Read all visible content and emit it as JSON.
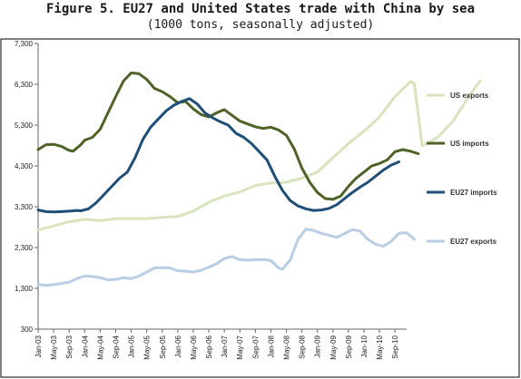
{
  "title": "Figure 5.  EU27 and United States trade with China by sea",
  "subtitle": "(1000 tons, seasonally adjusted)",
  "chart_data": {
    "type": "line",
    "title": "Figure 5.  EU27 and United States trade with China by sea",
    "subtitle": "(1000 tons, seasonally adjusted)",
    "xlabel": "",
    "ylabel": "",
    "ylim": [
      300,
      7300
    ],
    "yticks": [
      300,
      1300,
      2300,
      3300,
      4300,
      5300,
      6300,
      7300
    ],
    "ytick_labels": [
      "300",
      "1,300",
      "2,300",
      "3,300",
      "4,300",
      "5,300",
      "6,300",
      "7,300"
    ],
    "x_labels": [
      "Jan-03",
      "May-03",
      "Sep-03",
      "Jan-04",
      "May-04",
      "Sep-04",
      "Jan-05",
      "May-05",
      "Sep-05",
      "Jan-06",
      "May-06",
      "Sep-06",
      "Jan-07",
      "May-07",
      "Sep-07",
      "Jan-08",
      "May-08",
      "Sep-08",
      "Jan-09",
      "May-09",
      "Sep-09",
      "Jan-10",
      "May-10",
      "Sep-10"
    ],
    "grid": false,
    "legend": "right",
    "series": [
      {
        "name": "US exports",
        "color": "#d7e4bd",
        "points": [
          [
            0,
            2730
          ],
          [
            4,
            2830
          ],
          [
            8,
            2930
          ],
          [
            12,
            2990
          ],
          [
            16,
            2960
          ],
          [
            20,
            3010
          ],
          [
            24,
            3010
          ],
          [
            28,
            3010
          ],
          [
            32,
            3040
          ],
          [
            36,
            3060
          ],
          [
            40,
            3190
          ],
          [
            44,
            3410
          ],
          [
            48,
            3560
          ],
          [
            52,
            3660
          ],
          [
            56,
            3820
          ],
          [
            60,
            3880
          ],
          [
            64,
            3900
          ],
          [
            68,
            4000
          ],
          [
            72,
            4150
          ],
          [
            76,
            4500
          ],
          [
            80,
            4850
          ],
          [
            84,
            5150
          ],
          [
            88,
            5500
          ],
          [
            92,
            6000
          ],
          [
            96,
            6370
          ],
          [
            97,
            6320
          ],
          [
            99,
            4790
          ],
          [
            103,
            5000
          ],
          [
            107,
            5400
          ],
          [
            111,
            6000
          ],
          [
            114,
            6390
          ]
        ]
      },
      {
        "name": "US imports",
        "color": "#4f6228",
        "points": [
          [
            0,
            4700
          ],
          [
            2,
            4820
          ],
          [
            4,
            4830
          ],
          [
            6,
            4780
          ],
          [
            8,
            4680
          ],
          [
            9,
            4660
          ],
          [
            11,
            4820
          ],
          [
            12,
            4930
          ],
          [
            14,
            5000
          ],
          [
            16,
            5200
          ],
          [
            18,
            5600
          ],
          [
            20,
            6000
          ],
          [
            22,
            6380
          ],
          [
            24,
            6580
          ],
          [
            26,
            6560
          ],
          [
            28,
            6420
          ],
          [
            30,
            6200
          ],
          [
            32,
            6120
          ],
          [
            34,
            6000
          ],
          [
            36,
            5850
          ],
          [
            38,
            5880
          ],
          [
            40,
            5700
          ],
          [
            42,
            5560
          ],
          [
            44,
            5500
          ],
          [
            46,
            5600
          ],
          [
            48,
            5680
          ],
          [
            50,
            5540
          ],
          [
            52,
            5400
          ],
          [
            54,
            5330
          ],
          [
            56,
            5260
          ],
          [
            58,
            5220
          ],
          [
            60,
            5250
          ],
          [
            62,
            5180
          ],
          [
            64,
            5050
          ],
          [
            66,
            4720
          ],
          [
            68,
            4250
          ],
          [
            70,
            3900
          ],
          [
            72,
            3650
          ],
          [
            74,
            3500
          ],
          [
            76,
            3480
          ],
          [
            78,
            3560
          ],
          [
            80,
            3800
          ],
          [
            82,
            4000
          ],
          [
            84,
            4150
          ],
          [
            86,
            4300
          ],
          [
            88,
            4360
          ],
          [
            90,
            4450
          ],
          [
            92,
            4650
          ],
          [
            94,
            4700
          ],
          [
            96,
            4660
          ],
          [
            98,
            4600
          ]
        ]
      },
      {
        "name": "EU27 imports",
        "color": "#1f4e79",
        "points": [
          [
            0,
            3220
          ],
          [
            2,
            3180
          ],
          [
            4,
            3170
          ],
          [
            6,
            3180
          ],
          [
            8,
            3190
          ],
          [
            10,
            3210
          ],
          [
            11,
            3200
          ],
          [
            13,
            3250
          ],
          [
            15,
            3400
          ],
          [
            17,
            3600
          ],
          [
            19,
            3800
          ],
          [
            21,
            4000
          ],
          [
            23,
            4150
          ],
          [
            25,
            4500
          ],
          [
            27,
            4950
          ],
          [
            29,
            5250
          ],
          [
            31,
            5450
          ],
          [
            33,
            5650
          ],
          [
            35,
            5790
          ],
          [
            37,
            5880
          ],
          [
            39,
            5950
          ],
          [
            41,
            5820
          ],
          [
            43,
            5600
          ],
          [
            45,
            5480
          ],
          [
            47,
            5380
          ],
          [
            49,
            5300
          ],
          [
            51,
            5100
          ],
          [
            53,
            5000
          ],
          [
            55,
            4850
          ],
          [
            57,
            4650
          ],
          [
            59,
            4450
          ],
          [
            61,
            4050
          ],
          [
            63,
            3700
          ],
          [
            65,
            3450
          ],
          [
            67,
            3320
          ],
          [
            69,
            3250
          ],
          [
            71,
            3210
          ],
          [
            73,
            3220
          ],
          [
            75,
            3260
          ],
          [
            77,
            3350
          ],
          [
            79,
            3500
          ],
          [
            81,
            3650
          ],
          [
            83,
            3780
          ],
          [
            85,
            3900
          ],
          [
            87,
            4050
          ],
          [
            89,
            4200
          ],
          [
            91,
            4320
          ],
          [
            93,
            4400
          ]
        ]
      },
      {
        "name": "EU27 exports",
        "color": "#b9cde5",
        "points": [
          [
            0,
            1400
          ],
          [
            2,
            1370
          ],
          [
            4,
            1390
          ],
          [
            6,
            1420
          ],
          [
            8,
            1450
          ],
          [
            10,
            1540
          ],
          [
            12,
            1600
          ],
          [
            14,
            1590
          ],
          [
            16,
            1560
          ],
          [
            18,
            1510
          ],
          [
            20,
            1520
          ],
          [
            22,
            1560
          ],
          [
            24,
            1540
          ],
          [
            26,
            1600
          ],
          [
            28,
            1700
          ],
          [
            30,
            1800
          ],
          [
            32,
            1810
          ],
          [
            34,
            1800
          ],
          [
            36,
            1730
          ],
          [
            38,
            1720
          ],
          [
            40,
            1700
          ],
          [
            42,
            1740
          ],
          [
            44,
            1820
          ],
          [
            46,
            1900
          ],
          [
            48,
            2030
          ],
          [
            50,
            2080
          ],
          [
            52,
            2000
          ],
          [
            54,
            1990
          ],
          [
            56,
            2000
          ],
          [
            58,
            2010
          ],
          [
            60,
            1980
          ],
          [
            62,
            1800
          ],
          [
            63,
            1770
          ],
          [
            65,
            2000
          ],
          [
            67,
            2500
          ],
          [
            69,
            2750
          ],
          [
            71,
            2720
          ],
          [
            73,
            2650
          ],
          [
            75,
            2600
          ],
          [
            77,
            2550
          ],
          [
            79,
            2640
          ],
          [
            81,
            2740
          ],
          [
            83,
            2700
          ],
          [
            85,
            2500
          ],
          [
            87,
            2380
          ],
          [
            89,
            2330
          ],
          [
            91,
            2450
          ],
          [
            93,
            2650
          ],
          [
            95,
            2660
          ],
          [
            97,
            2500
          ]
        ]
      }
    ]
  }
}
